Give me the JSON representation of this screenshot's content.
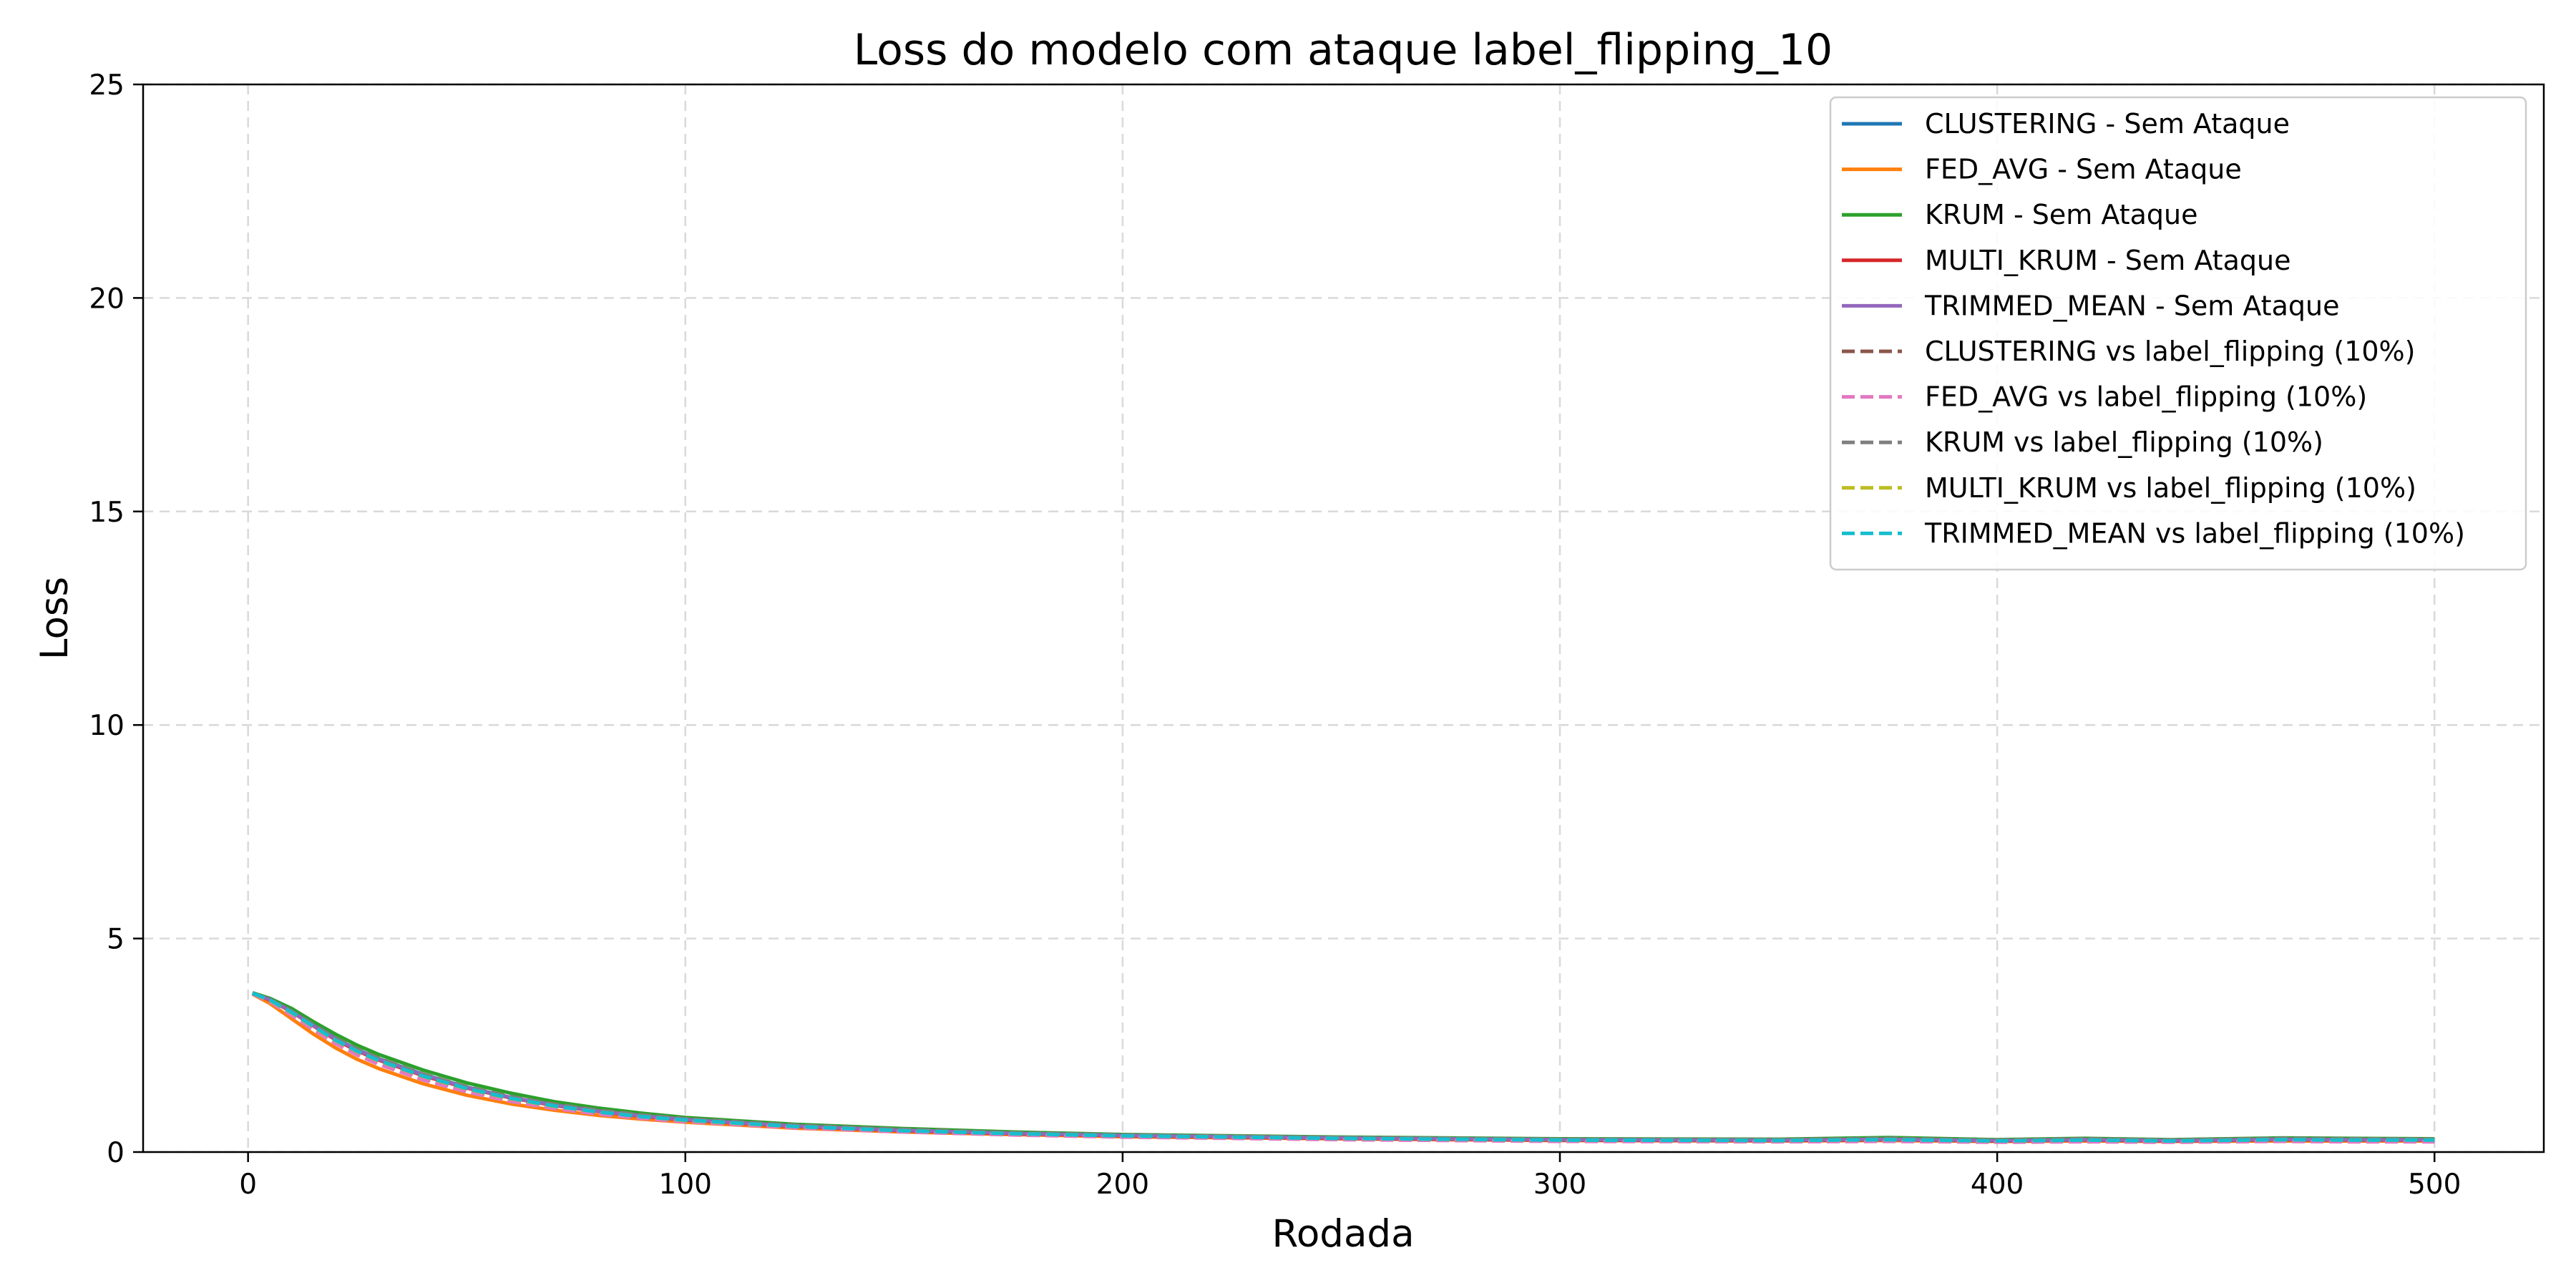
{
  "chart_data": {
    "type": "line",
    "title": "Loss do modelo com ataque label_flipping_10",
    "xlabel": "Rodada",
    "ylabel": "Loss",
    "xlim": [
      -24,
      525
    ],
    "ylim": [
      0,
      25
    ],
    "xticks": [
      0,
      100,
      200,
      300,
      400,
      500
    ],
    "yticks": [
      0,
      5,
      10,
      15,
      20,
      25
    ],
    "grid": true,
    "legend_position": "top-right",
    "x": [
      1,
      5,
      10,
      15,
      20,
      25,
      30,
      40,
      50,
      60,
      70,
      80,
      90,
      100,
      125,
      150,
      175,
      200,
      250,
      300,
      350,
      375,
      400,
      420,
      440,
      465,
      480,
      500
    ],
    "series": [
      {
        "name": "CLUSTERING - Sem Ataque",
        "color": "#1f77b4",
        "dash": "solid",
        "values": [
          3.72,
          3.58,
          3.3,
          2.98,
          2.66,
          2.4,
          2.18,
          1.82,
          1.52,
          1.28,
          1.1,
          0.96,
          0.85,
          0.76,
          0.61,
          0.51,
          0.44,
          0.39,
          0.33,
          0.29,
          0.28,
          0.3,
          0.27,
          0.29,
          0.27,
          0.3,
          0.29,
          0.29
        ]
      },
      {
        "name": "FED_AVG - Sem Ataque",
        "color": "#ff7f0e",
        "dash": "solid",
        "values": [
          3.7,
          3.48,
          3.12,
          2.76,
          2.44,
          2.17,
          1.95,
          1.6,
          1.33,
          1.13,
          0.98,
          0.86,
          0.77,
          0.7,
          0.56,
          0.47,
          0.41,
          0.36,
          0.31,
          0.27,
          0.26,
          0.27,
          0.25,
          0.26,
          0.25,
          0.26,
          0.26,
          0.26
        ]
      },
      {
        "name": "KRUM - Sem Ataque",
        "color": "#2ca02c",
        "dash": "solid",
        "values": [
          3.73,
          3.6,
          3.36,
          3.05,
          2.76,
          2.5,
          2.28,
          1.92,
          1.62,
          1.38,
          1.18,
          1.03,
          0.91,
          0.81,
          0.65,
          0.55,
          0.47,
          0.41,
          0.35,
          0.31,
          0.3,
          0.34,
          0.29,
          0.32,
          0.29,
          0.33,
          0.32,
          0.31
        ]
      },
      {
        "name": "MULTI_KRUM - Sem Ataque",
        "color": "#d62728",
        "dash": "solid",
        "values": [
          3.72,
          3.56,
          3.28,
          2.95,
          2.63,
          2.37,
          2.15,
          1.79,
          1.5,
          1.27,
          1.09,
          0.95,
          0.84,
          0.75,
          0.6,
          0.5,
          0.43,
          0.38,
          0.32,
          0.28,
          0.27,
          0.29,
          0.26,
          0.28,
          0.26,
          0.29,
          0.28,
          0.28
        ]
      },
      {
        "name": "TRIMMED_MEAN - Sem Ataque",
        "color": "#9467bd",
        "dash": "solid",
        "values": [
          3.72,
          3.57,
          3.29,
          2.96,
          2.65,
          2.39,
          2.17,
          1.81,
          1.51,
          1.28,
          1.1,
          0.96,
          0.85,
          0.76,
          0.61,
          0.51,
          0.44,
          0.39,
          0.33,
          0.29,
          0.28,
          0.3,
          0.27,
          0.29,
          0.27,
          0.3,
          0.29,
          0.29
        ]
      },
      {
        "name": "CLUSTERING vs label_flipping (10%)",
        "color": "#8c564b",
        "dash": "dashed",
        "values": [
          3.71,
          3.54,
          3.24,
          2.9,
          2.58,
          2.31,
          2.09,
          1.73,
          1.44,
          1.22,
          1.05,
          0.92,
          0.81,
          0.73,
          0.59,
          0.49,
          0.42,
          0.37,
          0.31,
          0.27,
          0.26,
          0.28,
          0.25,
          0.27,
          0.25,
          0.28,
          0.27,
          0.27
        ]
      },
      {
        "name": "FED_AVG vs label_flipping (10%)",
        "color": "#e377c2",
        "dash": "dashed",
        "values": [
          3.71,
          3.52,
          3.2,
          2.86,
          2.54,
          2.27,
          2.05,
          1.69,
          1.41,
          1.19,
          1.02,
          0.89,
          0.79,
          0.71,
          0.57,
          0.47,
          0.4,
          0.35,
          0.29,
          0.25,
          0.24,
          0.25,
          0.23,
          0.24,
          0.23,
          0.25,
          0.24,
          0.24
        ]
      },
      {
        "name": "KRUM vs label_flipping (10%)",
        "color": "#7f7f7f",
        "dash": "dashed",
        "values": [
          3.72,
          3.57,
          3.3,
          2.98,
          2.67,
          2.41,
          2.19,
          1.83,
          1.53,
          1.3,
          1.12,
          0.98,
          0.87,
          0.78,
          0.63,
          0.53,
          0.45,
          0.4,
          0.34,
          0.3,
          0.29,
          0.32,
          0.28,
          0.31,
          0.28,
          0.32,
          0.31,
          0.3
        ]
      },
      {
        "name": "MULTI_KRUM vs label_flipping (10%)",
        "color": "#bcbd22",
        "dash": "dashed",
        "values": [
          3.72,
          3.55,
          3.26,
          2.93,
          2.61,
          2.35,
          2.13,
          1.77,
          1.48,
          1.25,
          1.07,
          0.94,
          0.83,
          0.74,
          0.6,
          0.5,
          0.43,
          0.38,
          0.32,
          0.28,
          0.27,
          0.29,
          0.26,
          0.28,
          0.26,
          0.29,
          0.28,
          0.28
        ]
      },
      {
        "name": "TRIMMED_MEAN vs label_flipping (10%)",
        "color": "#17becf",
        "dash": "dashed",
        "values": [
          3.72,
          3.56,
          3.27,
          2.94,
          2.62,
          2.36,
          2.14,
          1.78,
          1.49,
          1.26,
          1.08,
          0.94,
          0.83,
          0.75,
          0.6,
          0.5,
          0.43,
          0.38,
          0.32,
          0.28,
          0.27,
          0.29,
          0.26,
          0.28,
          0.26,
          0.29,
          0.28,
          0.28
        ]
      }
    ]
  }
}
